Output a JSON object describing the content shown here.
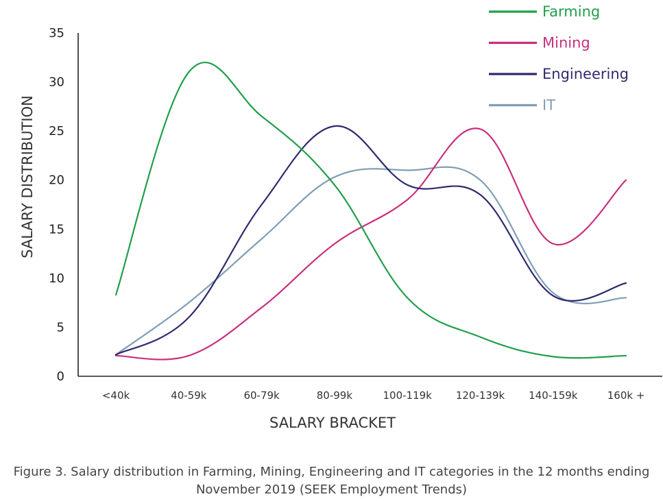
{
  "chart_data": {
    "type": "line",
    "categories": [
      "<40k",
      "40-59k",
      "60-79k",
      "80-99k",
      "100-119k",
      "120-139k",
      "140-159k",
      "160k +"
    ],
    "xlabel": "SALARY BRACKET",
    "ylabel": "SALARY DISTRIBUTION",
    "ylim": [
      0,
      35
    ],
    "yticks": [
      0,
      5,
      10,
      15,
      20,
      25,
      30,
      35
    ],
    "grid": false,
    "legend_position": "top-right",
    "series": [
      {
        "name": "Farming",
        "color": "#1f9e4b",
        "values": [
          8.3,
          31.0,
          26.5,
          19.5,
          8.0,
          4.0,
          2.0,
          2.1
        ]
      },
      {
        "name": "Mining",
        "color": "#c7307e",
        "values": [
          2.1,
          2.1,
          7.0,
          13.5,
          18.0,
          25.2,
          13.5,
          20.0
        ]
      },
      {
        "name": "Engineering",
        "color": "#2e2a6e",
        "values": [
          2.2,
          6.0,
          17.5,
          25.5,
          19.5,
          18.5,
          8.2,
          9.5
        ]
      },
      {
        "name": "IT",
        "color": "#7f9db4",
        "values": [
          2.2,
          7.5,
          14.0,
          20.3,
          21.0,
          20.0,
          8.5,
          8.0
        ]
      }
    ]
  },
  "caption": "Figure 3. Salary distribution in Farming, Mining, Engineering and IT categories in the 12 months ending November 2019 (SEEK Employment Trends)"
}
